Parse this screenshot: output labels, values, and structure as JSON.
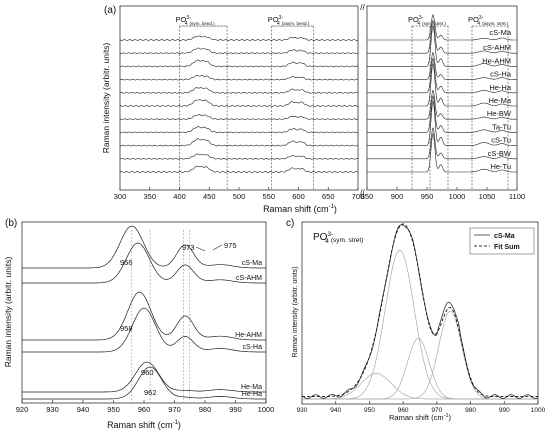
{
  "chart_data": [
    {
      "panel_label": "(a)",
      "type": "line",
      "xlabel_main": "Raman shift (cm",
      "xlabel_sup": "-1",
      "xlabel_end": ")",
      "ylabel": "Raman intensity (arbitr. units)",
      "segments": [
        {
          "xlim": [
            300,
            700
          ],
          "ticks": [
            "300",
            "350",
            "400",
            "450",
            "500",
            "550",
            "600",
            "650",
            "700"
          ]
        },
        {
          "xlim": [
            850,
            1100
          ],
          "ticks": [
            "850",
            "900",
            "950",
            "1000",
            "1050",
            "1100"
          ]
        }
      ],
      "region_labels": [
        {
          "base": "PO",
          "sub": "4",
          "sup": "3-",
          "note": "(sym. bend.)",
          "x": [
            400,
            480
          ]
        },
        {
          "base": "PO",
          "sub": "4",
          "sup": "3-",
          "note": "(asym. bend.)",
          "x": [
            555,
            625
          ]
        },
        {
          "base": "PO",
          "sub": "4",
          "sup": "3-",
          "note": "(sym. stret.)",
          "x": [
            925,
            985
          ]
        },
        {
          "base": "PO",
          "sub": "4",
          "sup": "3-",
          "note": "(asym. stret.)",
          "x": [
            1025,
            1085
          ]
        }
      ],
      "dashed_lines_x": [
        400,
        480,
        555,
        625,
        925,
        955,
        985,
        1025,
        1085
      ],
      "series_names": [
        "cS-Ma",
        "cS-AHM",
        "He-AHM",
        "cS-Ha",
        "He-Ha",
        "He-Ma",
        "He-BW",
        "Ta-Tu",
        "cS-Tu",
        "cS-BW",
        "He-Tu"
      ]
    },
    {
      "panel_label": "(b)",
      "type": "line",
      "xlabel_main": "Raman shift (cm",
      "xlabel_sup": "-1",
      "xlabel_end": ")",
      "ylabel": "Raman intensity (arbitr. units)",
      "xlim": [
        920,
        1000
      ],
      "ticks": [
        "920",
        "930",
        "940",
        "950",
        "960",
        "970",
        "980",
        "990",
        "1000"
      ],
      "series_names": [
        "cS-Ma",
        "cS-AHM",
        "He-AHM",
        "cS-Ha",
        "He-Ma",
        "He-Ha"
      ],
      "annotations": [
        "973",
        "975",
        "956",
        "958",
        "960",
        "962"
      ]
    },
    {
      "panel_label": "c)",
      "type": "line",
      "title_base": "PO",
      "title_sub": "4",
      "title_sup": "3-",
      "title_note": "(sym. stret)",
      "xlabel_main": "Raman shift (cm",
      "xlabel_sup": "-1",
      "xlabel_end": ")",
      "ylabel": "Raman intensity (arbitr. units)",
      "xlim": [
        930,
        1000
      ],
      "ticks": [
        "930",
        "940",
        "950",
        "960",
        "970",
        "980",
        "990",
        "1000"
      ],
      "components": [
        {
          "center": 952,
          "amp": 0.16,
          "sigma": 4.5
        },
        {
          "center": 959,
          "amp": 0.93,
          "sigma": 4.3
        },
        {
          "center": 964.5,
          "amp": 0.38,
          "sigma": 3.2
        },
        {
          "center": 974,
          "amp": 0.55,
          "sigma": 3.4
        }
      ],
      "legend": [
        {
          "name": "cS-Ma",
          "style": "solid"
        },
        {
          "name": "Fit Sum",
          "style": "dashed"
        }
      ]
    }
  ]
}
